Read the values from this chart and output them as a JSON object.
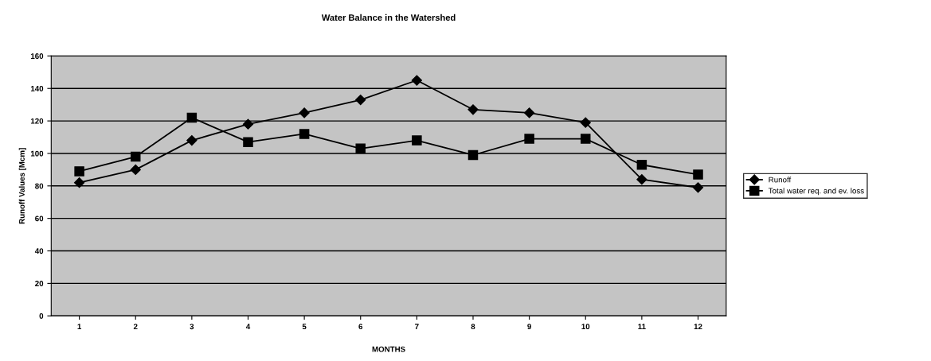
{
  "chart_data": {
    "type": "line",
    "title": "Water Balance in the Watershed",
    "xlabel": "MONTHS",
    "ylabel": "Runoff Values [Mcm]",
    "categories": [
      "1",
      "2",
      "3",
      "4",
      "5",
      "6",
      "7",
      "8",
      "9",
      "10",
      "11",
      "12"
    ],
    "series": [
      {
        "name": "Runoff",
        "color": "#000000",
        "marker": "diamond",
        "values": [
          82,
          90,
          108,
          118,
          125,
          133,
          145,
          127,
          125,
          119,
          84,
          79
        ]
      },
      {
        "name": "Total water req. and ev. loss",
        "color": "#000000",
        "marker": "square",
        "values": [
          89,
          98,
          122,
          107,
          112,
          103,
          108,
          99,
          109,
          109,
          93,
          87
        ]
      }
    ],
    "ylim": [
      0,
      160
    ],
    "yticks": [
      0,
      20,
      40,
      60,
      80,
      100,
      120,
      140,
      160
    ],
    "grid": "y",
    "legend": "right",
    "line_style": "solid"
  }
}
